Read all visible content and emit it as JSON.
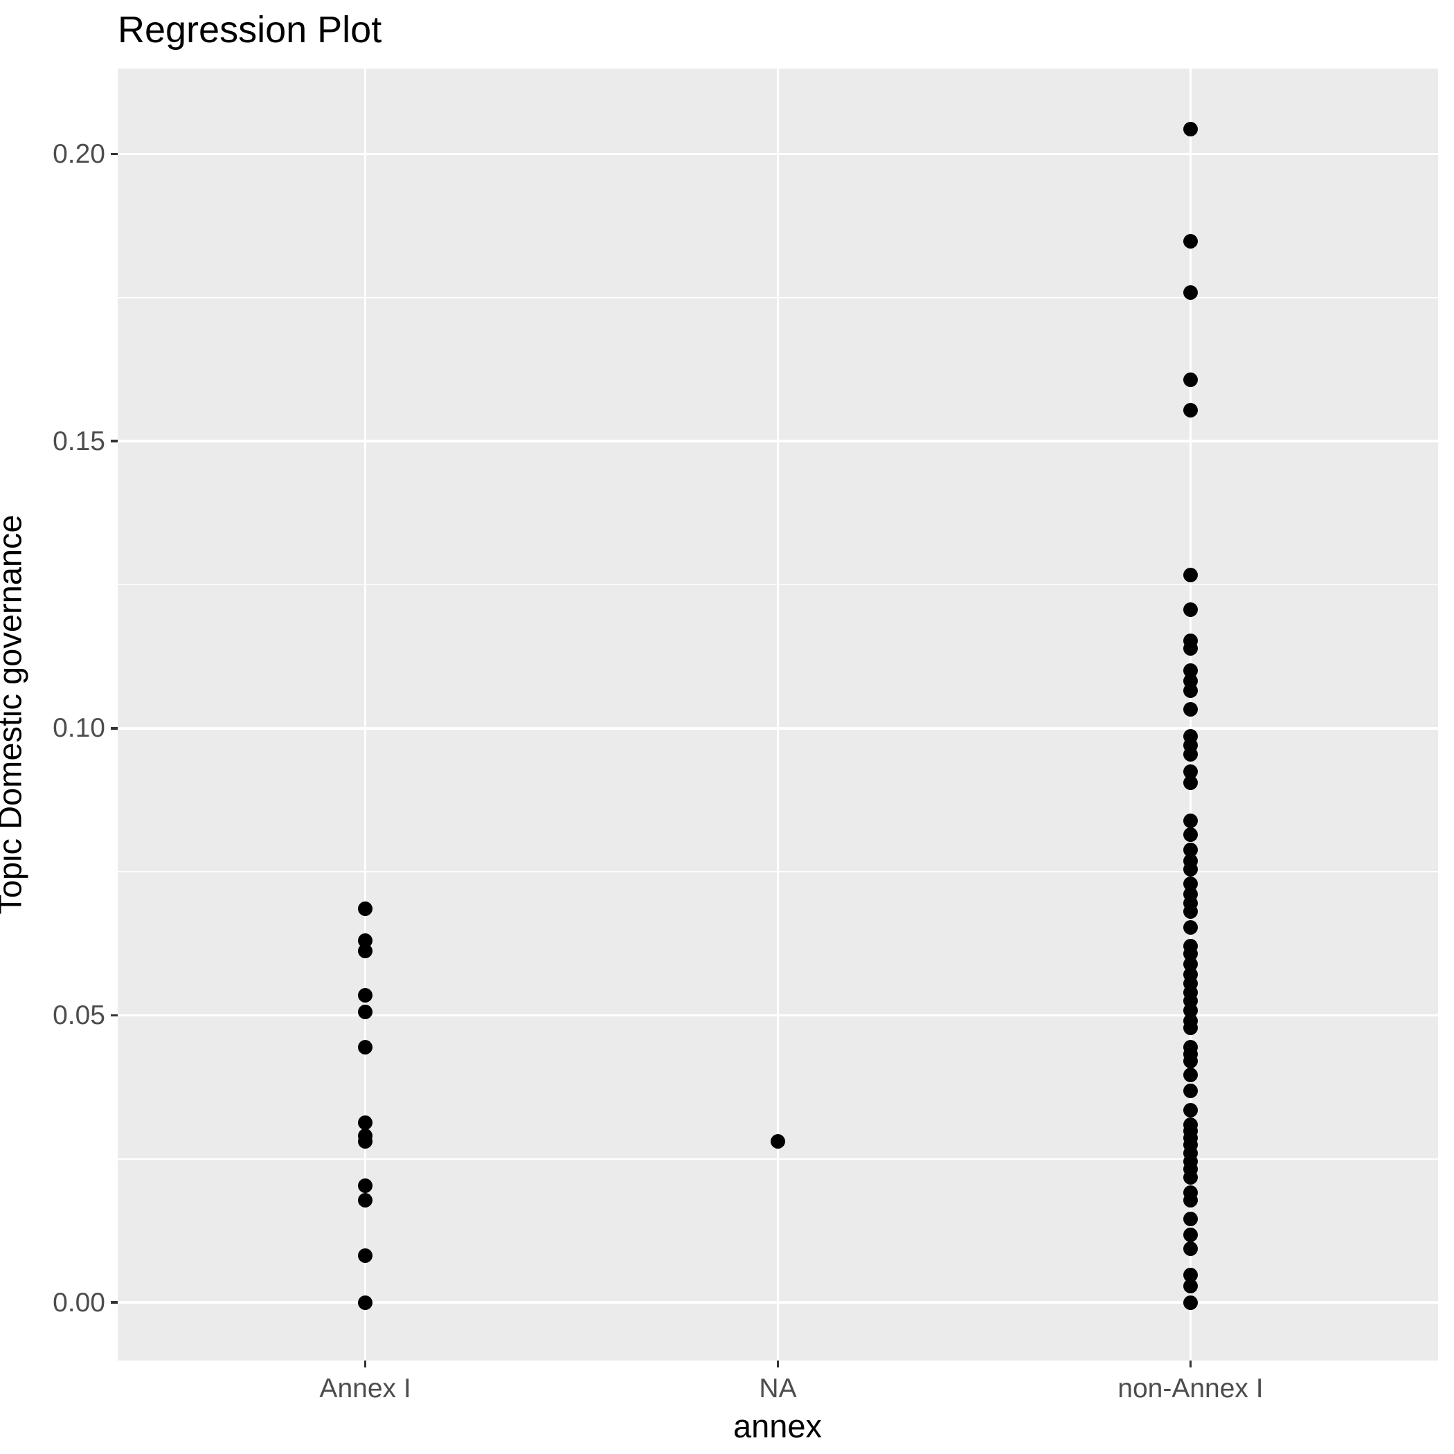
{
  "title": "Regression Plot",
  "chart_data": {
    "type": "scatter",
    "title": "Regression Plot",
    "xlabel": "annex",
    "ylabel": "Topic Domestic governance",
    "categories": [
      "Annex I",
      "NA",
      "non-Annex I"
    ],
    "y_ticks": [
      0.0,
      0.05,
      0.1,
      0.15,
      0.2
    ],
    "y_tick_labels": [
      "0.00",
      "0.05",
      "0.10",
      "0.15",
      "0.20"
    ],
    "y_minor_ticks": [
      0.025,
      0.075,
      0.125,
      0.175
    ],
    "ylim": [
      -0.0101,
      0.2149
    ],
    "grid": "on",
    "legend_position": "none",
    "point_color": "#000000",
    "panel_background": "#EBEBEB",
    "grid_color": "#FFFFFF",
    "tick_label_color": "#4D4D4D",
    "axis_text_color": "#000000",
    "series": [
      {
        "name": "Annex I",
        "values": [
          0.0686,
          0.063,
          0.0612,
          0.0535,
          0.0506,
          0.0445,
          0.0313,
          0.029,
          0.0281,
          0.0203,
          0.0178,
          0.0082,
          0.0
        ]
      },
      {
        "name": "NA",
        "values": [
          0.0281
        ]
      },
      {
        "name": "non-Annex I",
        "values": [
          0.2043,
          0.1848,
          0.1759,
          0.1607,
          0.1554,
          0.1267,
          0.1207,
          0.1153,
          0.1139,
          0.11,
          0.1082,
          0.1066,
          0.1033,
          0.0986,
          0.097,
          0.0955,
          0.0925,
          0.0905,
          0.0839,
          0.0815,
          0.0788,
          0.0769,
          0.0755,
          0.0729,
          0.0711,
          0.0695,
          0.0681,
          0.0653,
          0.0621,
          0.0607,
          0.0589,
          0.0571,
          0.0555,
          0.054,
          0.0525,
          0.0509,
          0.0491,
          0.0478,
          0.0445,
          0.0432,
          0.042,
          0.0396,
          0.0369,
          0.0335,
          0.0309,
          0.0299,
          0.0287,
          0.0275,
          0.026,
          0.0246,
          0.0233,
          0.0218,
          0.0192,
          0.0178,
          0.0146,
          0.0118,
          0.0094,
          0.0048,
          0.0029,
          0.0
        ]
      }
    ]
  }
}
